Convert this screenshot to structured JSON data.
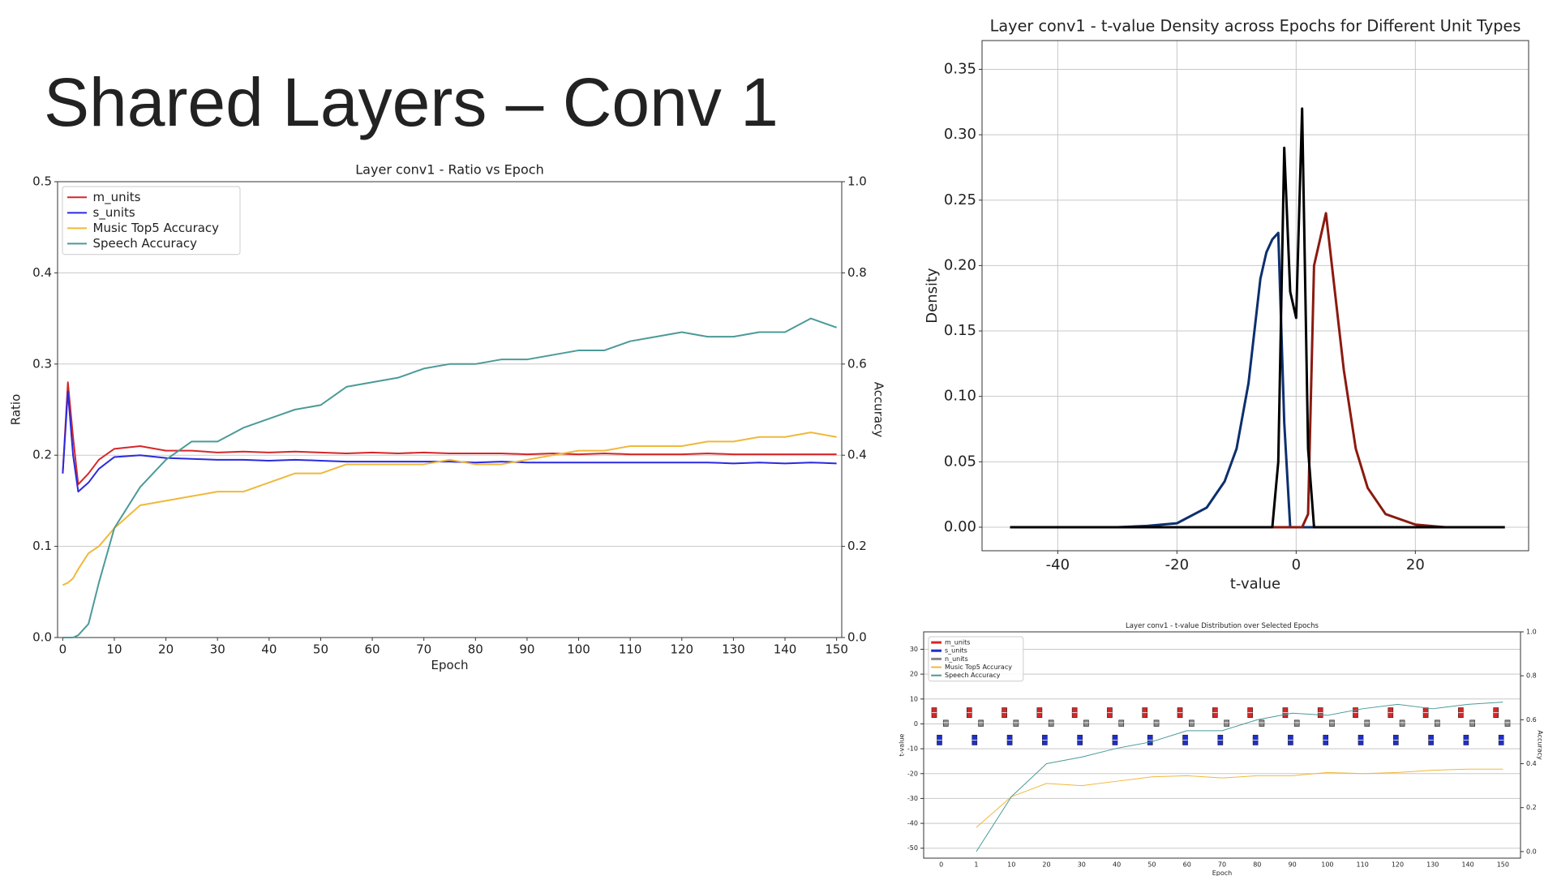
{
  "title": "Shared Layers – Conv 1",
  "chart_data": [
    {
      "type": "line",
      "title": "Layer conv1 - Ratio vs Epoch",
      "xlabel": "Epoch",
      "ylabel": "Ratio",
      "y2label": "Accuracy",
      "x": [
        0,
        1,
        2,
        3,
        5,
        7,
        10,
        15,
        20,
        25,
        30,
        35,
        40,
        45,
        50,
        55,
        60,
        65,
        70,
        75,
        80,
        85,
        90,
        95,
        100,
        105,
        110,
        115,
        120,
        125,
        130,
        135,
        140,
        145,
        150
      ],
      "xlim": [
        -1,
        151
      ],
      "xticks": [
        0,
        10,
        20,
        30,
        40,
        50,
        60,
        70,
        80,
        90,
        100,
        110,
        120,
        130,
        140,
        150
      ],
      "ylim": [
        0,
        0.5
      ],
      "yticks": [
        {
          "value": 0,
          "label": "0.0"
        },
        0.1,
        0.2,
        0.3,
        0.4,
        0.5
      ],
      "y2lim": [
        0,
        1
      ],
      "y2ticks": [
        {
          "value": 0,
          "label": "0.0"
        },
        0.2,
        0.4,
        0.6,
        0.8,
        {
          "value": 1,
          "label": "1.0"
        }
      ],
      "grid": "y",
      "legend": "upper-left",
      "series": [
        {
          "name": "m_units",
          "color": "#d62728",
          "values": [
            0.18,
            0.28,
            0.22,
            0.168,
            0.18,
            0.195,
            0.207,
            0.21,
            0.205,
            0.205,
            0.203,
            0.204,
            0.203,
            0.204,
            0.203,
            0.202,
            0.203,
            0.202,
            0.203,
            0.202,
            0.202,
            0.202,
            0.201,
            0.202,
            0.201,
            0.202,
            0.201,
            0.201,
            0.201,
            0.202,
            0.201,
            0.201,
            0.201,
            0.201,
            0.201
          ]
        },
        {
          "name": "s_units",
          "color": "#2a2ae0",
          "values": [
            0.18,
            0.27,
            0.2,
            0.16,
            0.17,
            0.185,
            0.198,
            0.2,
            0.197,
            0.196,
            0.195,
            0.195,
            0.194,
            0.195,
            0.194,
            0.193,
            0.193,
            0.193,
            0.193,
            0.193,
            0.192,
            0.193,
            0.192,
            0.192,
            0.192,
            0.192,
            0.192,
            0.192,
            0.192,
            0.192,
            0.191,
            0.192,
            0.191,
            0.192,
            0.191
          ]
        },
        {
          "name": "Music Top5 Accuracy",
          "color": "#f0b83a",
          "axis": "y2",
          "values": [
            0.115,
            0.12,
            0.13,
            0.15,
            0.185,
            0.2,
            0.24,
            0.29,
            0.3,
            0.31,
            0.32,
            0.32,
            0.34,
            0.36,
            0.36,
            0.38,
            0.38,
            0.38,
            0.38,
            0.39,
            0.38,
            0.38,
            0.39,
            0.4,
            0.41,
            0.41,
            0.42,
            0.42,
            0.42,
            0.43,
            0.43,
            0.44,
            0.44,
            0.45,
            0.44
          ]
        },
        {
          "name": "Speech Accuracy",
          "color": "#4b9a98",
          "axis": "y2",
          "values": [
            0,
            0,
            0,
            0.005,
            0.03,
            0.12,
            0.24,
            0.33,
            0.39,
            0.43,
            0.43,
            0.46,
            0.48,
            0.5,
            0.51,
            0.55,
            0.56,
            0.57,
            0.59,
            0.6,
            0.6,
            0.61,
            0.61,
            0.62,
            0.63,
            0.63,
            0.65,
            0.66,
            0.67,
            0.66,
            0.66,
            0.67,
            0.67,
            0.7,
            0.68
          ]
        }
      ]
    },
    {
      "type": "line",
      "title": "Layer conv1 - t-value Density across Epochs for Different Unit Types",
      "xlabel": "t-value",
      "ylabel": "Density",
      "x": [
        -48,
        -30,
        -25,
        -20,
        -15,
        -12,
        -10,
        -8,
        -6,
        -5,
        -4,
        -3,
        -2,
        -1,
        0,
        1,
        2,
        3,
        4,
        5,
        6,
        8,
        10,
        12,
        15,
        20,
        25,
        35
      ],
      "xlim": [
        -52.7,
        39
      ],
      "xticks": [
        -40,
        -20,
        0,
        20
      ],
      "ylim": [
        -0.018,
        0.372
      ],
      "yticks": [
        {
          "value": 0,
          "label": "0.00"
        },
        {
          "value": 0.05,
          "label": "0.05"
        },
        {
          "value": 0.1,
          "label": "0.10"
        },
        {
          "value": 0.15,
          "label": "0.15"
        },
        {
          "value": 0.2,
          "label": "0.20"
        },
        {
          "value": 0.25,
          "label": "0.25"
        },
        {
          "value": 0.3,
          "label": "0.30"
        },
        {
          "value": 0.35,
          "label": "0.35"
        }
      ],
      "grid": "both",
      "series": [
        {
          "color": "#0d2f6e",
          "values": [
            0,
            0,
            0.001,
            0.003,
            0.015,
            0.035,
            0.06,
            0.11,
            0.19,
            0.21,
            0.22,
            0.225,
            0.08,
            0,
            0,
            0,
            0,
            0,
            0,
            0,
            0,
            0,
            0,
            0,
            0,
            0,
            0,
            0
          ]
        },
        {
          "color": "#8b1a10",
          "values": [
            0,
            0,
            0,
            0,
            0,
            0,
            0,
            0,
            0,
            0,
            0,
            0,
            0,
            0,
            0,
            0,
            0.01,
            0.2,
            0.22,
            0.24,
            0.2,
            0.12,
            0.06,
            0.03,
            0.01,
            0.002,
            0,
            0
          ]
        },
        {
          "color": "#000000",
          "values": [
            0,
            0,
            0,
            0,
            0,
            0,
            0,
            0,
            0,
            0,
            0,
            0.05,
            0.29,
            0.18,
            0.16,
            0.32,
            0.06,
            0,
            0,
            0,
            0,
            0,
            0,
            0,
            0,
            0,
            0,
            0
          ]
        }
      ]
    },
    {
      "type": "box",
      "title": "Layer conv1 - t-value Distribution over Selected Epochs",
      "xlabel": "Epoch",
      "ylabel": "t-value",
      "y2label": "Accuracy",
      "categories": [
        "0",
        "1",
        "10",
        "20",
        "30",
        "40",
        "50",
        "60",
        "70",
        "80",
        "90",
        "100",
        "110",
        "120",
        "130",
        "140",
        "150"
      ],
      "ylim": [
        -54,
        37
      ],
      "yticks": [
        -50,
        -40,
        -30,
        -20,
        -10,
        0,
        10,
        20,
        30
      ],
      "y2lim": [
        -0.03,
        1
      ],
      "y2ticks": [
        {
          "value": 0,
          "label": "0.0"
        },
        0.2,
        0.4,
        0.6,
        0.8,
        {
          "value": 1,
          "label": "1.0"
        }
      ],
      "grid": "y",
      "legend": "upper-left",
      "series": [
        {
          "name": "m_units",
          "color": "#d62728",
          "q1": [
            2.5,
            2.5,
            2.5,
            2.5,
            2.5,
            2.5,
            2.5,
            2.5,
            2.5,
            2.5,
            2.5,
            2.5,
            2.5,
            2.5,
            2.5,
            2.5,
            2.5
          ],
          "median": [
            4.5,
            4.5,
            4.5,
            4.5,
            4.5,
            4.5,
            4.5,
            4.5,
            4.5,
            4.5,
            4.5,
            4.5,
            4.5,
            4.5,
            4.5,
            4.5,
            4.5
          ],
          "q3": [
            6.5,
            6.5,
            6.5,
            6.5,
            6.5,
            6.5,
            6.5,
            6.5,
            6.5,
            6.5,
            6.5,
            6.5,
            6.5,
            6.5,
            6.5,
            6.5,
            6.5
          ]
        },
        {
          "name": "s_units",
          "color": "#1f2fc8",
          "q1": [
            -8.5,
            -8.5,
            -8.5,
            -8.5,
            -8.5,
            -8.5,
            -8.5,
            -8.5,
            -8.5,
            -8.5,
            -8.5,
            -8.5,
            -8.5,
            -8.5,
            -8.5,
            -8.5,
            -8.5
          ],
          "median": [
            -6.5,
            -6.5,
            -6.5,
            -6.5,
            -6.5,
            -6.5,
            -6.5,
            -6.5,
            -6.5,
            -6.5,
            -6.5,
            -6.5,
            -6.5,
            -6.5,
            -6.5,
            -6.5,
            -6.5
          ],
          "q3": [
            -4.5,
            -4.5,
            -4.5,
            -4.5,
            -4.5,
            -4.5,
            -4.5,
            -4.5,
            -4.5,
            -4.5,
            -4.5,
            -4.5,
            -4.5,
            -4.5,
            -4.5,
            -4.5,
            -4.5
          ]
        },
        {
          "name": "n_units",
          "color": "#888888",
          "q1": [
            -1,
            -1,
            -1,
            -1,
            -1,
            -1,
            -1,
            -1,
            -1,
            -1,
            -1,
            -1,
            -1,
            -1,
            -1,
            -1,
            -1
          ],
          "median": [
            0.5,
            0.5,
            0.5,
            0.5,
            0.5,
            0.5,
            0.5,
            0.5,
            0.5,
            0.5,
            0.5,
            0.5,
            0.5,
            0.5,
            0.5,
            0.5,
            0.5
          ],
          "q3": [
            1.5,
            1.5,
            1.5,
            1.5,
            1.5,
            1.5,
            1.5,
            1.5,
            1.5,
            1.5,
            1.5,
            1.5,
            1.5,
            1.5,
            1.5,
            1.5,
            1.5
          ]
        },
        {
          "name": "Music Top5 Accuracy",
          "color": "#f0b83a",
          "axis": "y2",
          "values": [
            null,
            0.11,
            0.25,
            0.31,
            0.3,
            0.32,
            0.34,
            0.345,
            0.335,
            0.345,
            0.345,
            0.36,
            0.355,
            0.36,
            0.37,
            0.375,
            0.375
          ]
        },
        {
          "name": "Speech Accuracy",
          "color": "#4b9a98",
          "axis": "y2",
          "values": [
            null,
            0,
            0.25,
            0.4,
            0.43,
            0.47,
            0.5,
            0.55,
            0.55,
            0.6,
            0.63,
            0.62,
            0.65,
            0.67,
            0.65,
            0.67,
            0.68
          ]
        }
      ]
    }
  ]
}
